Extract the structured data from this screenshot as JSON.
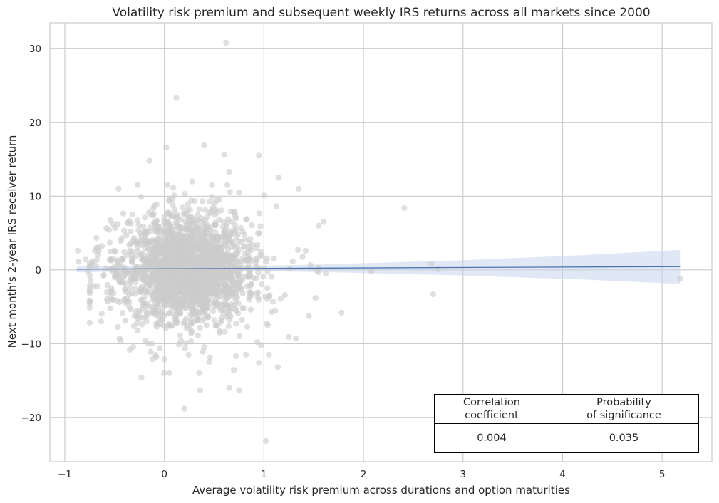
{
  "chart_data": {
    "type": "scatter",
    "title": "Volatility risk premium and subsequent weekly IRS returns across all markets since 2000",
    "xlabel": "Average volatility risk premium across durations and option maturities",
    "ylabel": "Next month's 2-year IRS receiver return",
    "xlim": [
      -1.15,
      5.5
    ],
    "ylim": [
      -26,
      33.5
    ],
    "xticks": [
      -1,
      0,
      1,
      2,
      3,
      4,
      5
    ],
    "yticks": [
      -20,
      -10,
      0,
      10,
      20,
      30
    ],
    "grid": true,
    "point_color": "#cccccc",
    "line_color": "#4c72b0",
    "band_color": "#c7d3ec",
    "regression": {
      "x": [
        -0.88,
        5.18
      ],
      "y": [
        0.1,
        0.45
      ]
    },
    "confidence_band": {
      "x": [
        -0.88,
        0.25,
        1.6,
        3.0,
        4.2,
        5.18
      ],
      "lower": [
        -0.35,
        -0.05,
        -0.3,
        -0.75,
        -1.3,
        -1.9
      ],
      "upper": [
        0.55,
        0.35,
        0.75,
        1.3,
        2.0,
        2.7
      ]
    },
    "outliers": [
      {
        "x": 0.62,
        "y": 30.8
      },
      {
        "x": 0.12,
        "y": 23.3
      },
      {
        "x": 0.02,
        "y": 16.6
      },
      {
        "x": 0.4,
        "y": 16.9
      },
      {
        "x": -0.15,
        "y": 14.8
      },
      {
        "x": 0.6,
        "y": 15.6
      },
      {
        "x": 0.95,
        "y": 15.5
      },
      {
        "x": 1.15,
        "y": 12.5
      },
      {
        "x": 1.35,
        "y": 11.0
      },
      {
        "x": -0.46,
        "y": 11.0
      },
      {
        "x": 1.0,
        "y": 10.1
      },
      {
        "x": 2.41,
        "y": 8.4
      },
      {
        "x": 1.6,
        "y": 6.5
      },
      {
        "x": 1.55,
        "y": 6.0
      },
      {
        "x": 1.42,
        "y": 2.6
      },
      {
        "x": -0.87,
        "y": 2.6
      },
      {
        "x": -0.86,
        "y": 1.1
      },
      {
        "x": -0.79,
        "y": 1.4
      },
      {
        "x": -0.77,
        "y": -0.2
      },
      {
        "x": -0.74,
        "y": -1.4
      },
      {
        "x": 1.62,
        "y": -0.5
      },
      {
        "x": 1.55,
        "y": -0.3
      },
      {
        "x": 2.08,
        "y": -0.2
      },
      {
        "x": 2.68,
        "y": 0.8
      },
      {
        "x": 2.75,
        "y": 0.1
      },
      {
        "x": 2.7,
        "y": -3.3
      },
      {
        "x": 5.18,
        "y": -1.2
      },
      {
        "x": 1.78,
        "y": -5.8
      },
      {
        "x": 1.25,
        "y": -9.1
      },
      {
        "x": 1.32,
        "y": -9.3
      },
      {
        "x": 1.04,
        "y": -7.5
      },
      {
        "x": 1.05,
        "y": -11.5
      },
      {
        "x": 1.14,
        "y": -13.2
      },
      {
        "x": 0.95,
        "y": -12.6
      },
      {
        "x": 0.82,
        "y": -11.5
      },
      {
        "x": 0.72,
        "y": -11.7
      },
      {
        "x": 0.65,
        "y": -16.0
      },
      {
        "x": 0.75,
        "y": -16.3
      },
      {
        "x": 0.36,
        "y": -16.3
      },
      {
        "x": 0.2,
        "y": -18.8
      },
      {
        "x": 1.02,
        "y": -23.2
      },
      {
        "x": 0.05,
        "y": -14.0
      },
      {
        "x": -0.23,
        "y": -14.6
      },
      {
        "x": -0.08,
        "y": -11.8
      },
      {
        "x": 0.45,
        "y": -12.5
      },
      {
        "x": 0.0,
        "y": -12.1
      },
      {
        "x": 1.03,
        "y": -7.3
      },
      {
        "x": -0.45,
        "y": -9.3
      },
      {
        "x": 0.28,
        "y": 12.0
      },
      {
        "x": 0.65,
        "y": 13.3
      },
      {
        "x": 0.75,
        "y": 10.5
      }
    ]
  },
  "table": {
    "header": [
      "Correlation\ncoefficient",
      "Probability\nof significance"
    ],
    "values": [
      "0.004",
      "0.035"
    ]
  }
}
